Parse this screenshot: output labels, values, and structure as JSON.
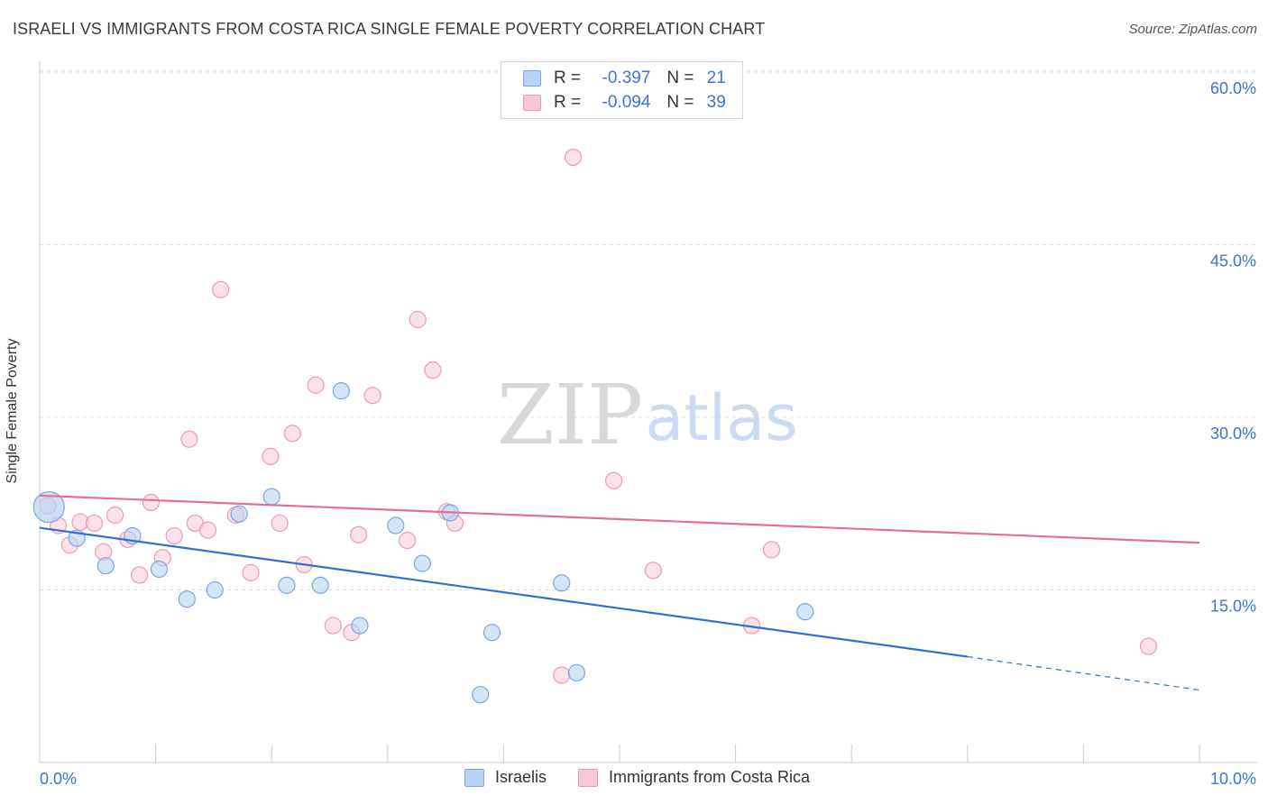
{
  "title": "ISRAELI VS IMMIGRANTS FROM COSTA RICA SINGLE FEMALE POVERTY CORRELATION CHART",
  "source": "Source: ZipAtlas.com",
  "watermark": {
    "zip": "ZIP",
    "atlas": "atlas"
  },
  "legend": {
    "rows": [
      {
        "r_label": "R =",
        "r_value": "-0.397",
        "n_label": "N =",
        "n_value": "21"
      },
      {
        "r_label": "R =",
        "r_value": "-0.094",
        "n_label": "N =",
        "n_value": "39"
      }
    ]
  },
  "colors": {
    "israelis_fill": "#b8d3f5",
    "israelis_stroke": "#7aa6e0",
    "israelis_line": "#2e6fd6",
    "costa_fill": "#f9c8d6",
    "costa_stroke": "#ee9ab3",
    "costa_line": "#e46e97",
    "tick_text": "#3b73d1",
    "grid": "#dddddd"
  },
  "chart_data": {
    "type": "scatter",
    "title": "ISRAELI VS IMMIGRANTS FROM COSTA RICA SINGLE FEMALE POVERTY CORRELATION CHART",
    "xlabel": "",
    "ylabel": "Single Female Poverty",
    "xlim": [
      0,
      10
    ],
    "ylim": [
      0,
      60
    ],
    "x_tick_labels": [
      "0.0%",
      "10.0%"
    ],
    "y_ticks": [
      15,
      30,
      45,
      60
    ],
    "y_tick_labels": [
      "15.0%",
      "30.0%",
      "45.0%",
      "60.0%"
    ],
    "grid": true,
    "legend_position": "top-center",
    "series": [
      {
        "name": "Israelis",
        "r": -0.397,
        "n": 21,
        "trend": {
          "x0": 0,
          "y0": 20.4,
          "x1": 8.0,
          "y1": 9.2,
          "dash_to_x": 10,
          "dash_to_y": 6.3
        },
        "points": [
          {
            "x": 0.08,
            "y": 22.2,
            "big": true
          },
          {
            "x": 0.32,
            "y": 19.5
          },
          {
            "x": 0.57,
            "y": 17.1
          },
          {
            "x": 0.8,
            "y": 19.7
          },
          {
            "x": 1.03,
            "y": 16.8
          },
          {
            "x": 1.27,
            "y": 14.2
          },
          {
            "x": 1.51,
            "y": 15.0
          },
          {
            "x": 1.72,
            "y": 21.6
          },
          {
            "x": 2.0,
            "y": 23.1
          },
          {
            "x": 2.13,
            "y": 15.4
          },
          {
            "x": 2.42,
            "y": 15.4
          },
          {
            "x": 2.6,
            "y": 32.3
          },
          {
            "x": 2.76,
            "y": 11.9
          },
          {
            "x": 3.07,
            "y": 20.6
          },
          {
            "x": 3.3,
            "y": 17.3
          },
          {
            "x": 3.54,
            "y": 21.7
          },
          {
            "x": 3.8,
            "y": 5.9
          },
          {
            "x": 3.9,
            "y": 11.3
          },
          {
            "x": 4.5,
            "y": 15.6
          },
          {
            "x": 4.63,
            "y": 7.8
          },
          {
            "x": 6.6,
            "y": 13.1
          }
        ]
      },
      {
        "name": "Immigrants from Costa Rica",
        "r": -0.094,
        "n": 39,
        "trend": {
          "x0": 0,
          "y0": 23.2,
          "x1": 10,
          "y1": 19.1
        },
        "points": [
          {
            "x": 0.07,
            "y": 22.3
          },
          {
            "x": 0.16,
            "y": 20.6
          },
          {
            "x": 0.26,
            "y": 18.9
          },
          {
            "x": 0.35,
            "y": 20.9
          },
          {
            "x": 0.47,
            "y": 20.8
          },
          {
            "x": 0.55,
            "y": 18.3
          },
          {
            "x": 0.65,
            "y": 21.5
          },
          {
            "x": 0.76,
            "y": 19.4
          },
          {
            "x": 0.86,
            "y": 16.3
          },
          {
            "x": 0.96,
            "y": 22.6
          },
          {
            "x": 1.06,
            "y": 17.8
          },
          {
            "x": 1.16,
            "y": 19.7
          },
          {
            "x": 1.29,
            "y": 28.1
          },
          {
            "x": 1.34,
            "y": 20.8
          },
          {
            "x": 1.45,
            "y": 20.2
          },
          {
            "x": 1.56,
            "y": 41.1
          },
          {
            "x": 1.69,
            "y": 21.5
          },
          {
            "x": 1.82,
            "y": 16.5
          },
          {
            "x": 1.99,
            "y": 26.6
          },
          {
            "x": 2.07,
            "y": 20.8
          },
          {
            "x": 2.18,
            "y": 28.6
          },
          {
            "x": 2.28,
            "y": 17.2
          },
          {
            "x": 2.38,
            "y": 32.8
          },
          {
            "x": 2.53,
            "y": 11.9
          },
          {
            "x": 2.69,
            "y": 11.3
          },
          {
            "x": 2.75,
            "y": 19.8
          },
          {
            "x": 2.87,
            "y": 31.9
          },
          {
            "x": 3.17,
            "y": 19.3
          },
          {
            "x": 3.26,
            "y": 38.5
          },
          {
            "x": 3.39,
            "y": 34.1
          },
          {
            "x": 3.51,
            "y": 21.8
          },
          {
            "x": 3.58,
            "y": 20.8
          },
          {
            "x": 4.5,
            "y": 7.6
          },
          {
            "x": 4.6,
            "y": 52.6
          },
          {
            "x": 4.95,
            "y": 24.5
          },
          {
            "x": 5.29,
            "y": 16.7
          },
          {
            "x": 6.14,
            "y": 11.9
          },
          {
            "x": 6.31,
            "y": 18.5
          },
          {
            "x": 9.56,
            "y": 10.1
          }
        ]
      }
    ]
  }
}
